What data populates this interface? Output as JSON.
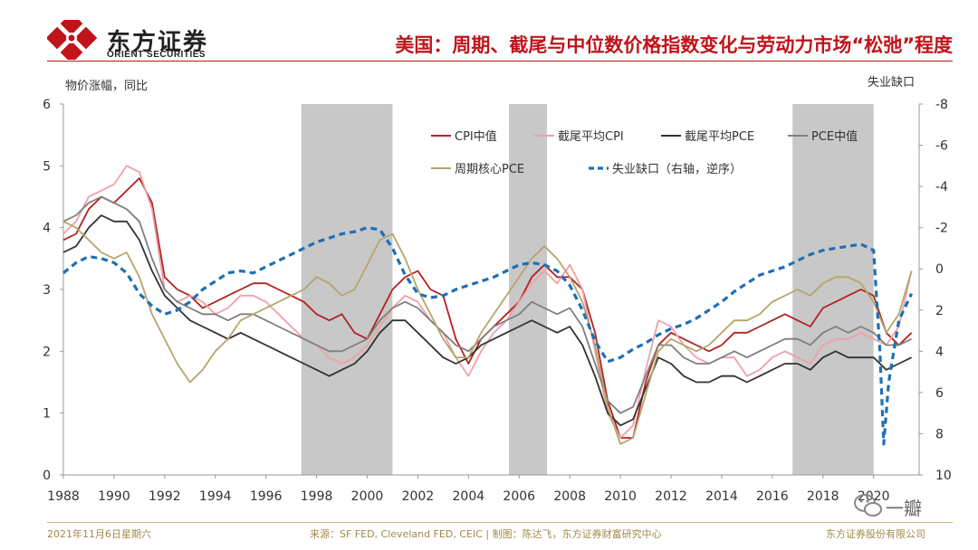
{
  "header": {
    "logo_cn": "东方证券",
    "logo_en": "ORIENT SECURITIES",
    "title": "美国：周期、截尾与中位数价格指数变化与劳动力市场“松弛”程度"
  },
  "footer": {
    "date": "2021年11月6日星期六",
    "source": "来源：SF FED, Cleveland FED, CEIC | 制图：陈达飞，东方证券财富研究中心",
    "company": "东方证券股份有限公司"
  },
  "watermark": {
    "text": "一瓣"
  },
  "colors": {
    "cpi_median": "#b22222",
    "trimmed_cpi": "#f0a0a8",
    "trimmed_pce": "#333333",
    "pce_median": "#7f7f7f",
    "cyclical_pce": "#b5a66a",
    "unemp_gap": "#1f6fb5",
    "shade": "#c8c8c8"
  },
  "chart_data": {
    "type": "line",
    "ylabel": "物价涨幅，同比",
    "y2label": "失业缺口",
    "xlim": [
      1988,
      2021.8
    ],
    "ylim": [
      0,
      6
    ],
    "y2lim": [
      10,
      -8
    ],
    "y2_reversed": true,
    "x_ticks": [
      "1988",
      "1990",
      "1992",
      "1994",
      "1996",
      "1998",
      "2000",
      "2002",
      "2004",
      "2006",
      "2008",
      "2010",
      "2012",
      "2014",
      "2016",
      "2018",
      "2020"
    ],
    "y_ticks": [
      "0",
      "1",
      "2",
      "3",
      "4",
      "5",
      "6"
    ],
    "y2_ticks": [
      "10",
      "8",
      "6",
      "4",
      "2",
      "0",
      "-2",
      "-4",
      "-6",
      "-8"
    ],
    "shaded_periods": [
      [
        1997.4,
        2001.0
      ],
      [
        2005.6,
        2007.1
      ],
      [
        2016.8,
        2020.0
      ]
    ],
    "series": [
      {
        "name": "CPI中值",
        "axis": "left",
        "style": "solid",
        "x": [
          1988,
          1988.5,
          1989,
          1989.5,
          1990,
          1990.5,
          1991,
          1991.5,
          1992,
          1992.5,
          1993,
          1993.5,
          1994,
          1994.5,
          1995,
          1995.5,
          1996,
          1996.5,
          1997,
          1997.5,
          1998,
          1998.5,
          1999,
          1999.5,
          2000,
          2000.5,
          2001,
          2001.5,
          2002,
          2002.5,
          2003,
          2003.5,
          2004,
          2004.5,
          2005,
          2005.5,
          2006,
          2006.5,
          2007,
          2007.5,
          2008,
          2008.5,
          2009,
          2009.5,
          2010,
          2010.5,
          2011,
          2011.5,
          2012,
          2012.5,
          2013,
          2013.5,
          2014,
          2014.5,
          2015,
          2015.5,
          2016,
          2016.5,
          2017,
          2017.5,
          2018,
          2018.5,
          2019,
          2019.5,
          2020,
          2020.5,
          2021,
          2021.5
        ],
        "y": [
          3.8,
          3.9,
          4.3,
          4.5,
          4.4,
          4.6,
          4.8,
          4.4,
          3.2,
          3.0,
          2.9,
          2.7,
          2.8,
          2.9,
          3.0,
          3.1,
          3.1,
          3.0,
          2.9,
          2.8,
          2.6,
          2.5,
          2.6,
          2.3,
          2.2,
          2.6,
          3.0,
          3.2,
          3.3,
          3.0,
          2.9,
          2.2,
          1.8,
          2.2,
          2.4,
          2.6,
          2.8,
          3.2,
          3.4,
          3.2,
          3.2,
          3.0,
          2.3,
          1.2,
          0.6,
          0.6,
          1.5,
          2.1,
          2.3,
          2.2,
          2.1,
          2.0,
          2.1,
          2.3,
          2.3,
          2.4,
          2.5,
          2.6,
          2.5,
          2.4,
          2.7,
          2.8,
          2.9,
          3.0,
          2.9,
          2.3,
          2.1,
          2.3
        ]
      },
      {
        "name": "截尾平均CPI",
        "axis": "left",
        "style": "solid",
        "x": [
          1988,
          1988.5,
          1989,
          1989.5,
          1990,
          1990.5,
          1991,
          1991.5,
          1992,
          1992.5,
          1993,
          1993.5,
          1994,
          1994.5,
          1995,
          1995.5,
          1996,
          1996.5,
          1997,
          1997.5,
          1998,
          1998.5,
          1999,
          1999.5,
          2000,
          2000.5,
          2001,
          2001.5,
          2002,
          2002.5,
          2003,
          2003.5,
          2004,
          2004.5,
          2005,
          2005.5,
          2006,
          2006.5,
          2007,
          2007.5,
          2008,
          2008.5,
          2009,
          2009.5,
          2010,
          2010.5,
          2011,
          2011.5,
          2012,
          2012.5,
          2013,
          2013.5,
          2014,
          2014.5,
          2015,
          2015.5,
          2016,
          2016.5,
          2017,
          2017.5,
          2018,
          2018.5,
          2019,
          2019.5,
          2020,
          2020.5,
          2021,
          2021.5
        ],
        "y": [
          3.9,
          4.1,
          4.5,
          4.6,
          4.7,
          5.0,
          4.9,
          4.3,
          3.0,
          2.8,
          2.9,
          2.8,
          2.6,
          2.7,
          2.9,
          2.9,
          2.8,
          2.6,
          2.4,
          2.2,
          2.1,
          1.9,
          1.8,
          1.9,
          2.1,
          2.4,
          2.7,
          2.9,
          2.8,
          2.5,
          2.3,
          1.9,
          1.6,
          2.0,
          2.3,
          2.5,
          2.8,
          3.1,
          3.3,
          3.1,
          3.4,
          3.0,
          2.0,
          1.0,
          0.6,
          0.8,
          1.7,
          2.5,
          2.4,
          2.1,
          1.9,
          1.8,
          1.9,
          1.9,
          1.6,
          1.7,
          1.9,
          2.0,
          1.9,
          1.8,
          2.1,
          2.2,
          2.2,
          2.3,
          2.2,
          2.1,
          2.4,
          3.3
        ]
      },
      {
        "name": "截尾平均PCE",
        "axis": "left",
        "style": "solid",
        "x": [
          1988,
          1988.5,
          1989,
          1989.5,
          1990,
          1990.5,
          1991,
          1991.5,
          1992,
          1992.5,
          1993,
          1993.5,
          1994,
          1994.5,
          1995,
          1995.5,
          1996,
          1996.5,
          1997,
          1997.5,
          1998,
          1998.5,
          1999,
          1999.5,
          2000,
          2000.5,
          2001,
          2001.5,
          2002,
          2002.5,
          2003,
          2003.5,
          2004,
          2004.5,
          2005,
          2005.5,
          2006,
          2006.5,
          2007,
          2007.5,
          2008,
          2008.5,
          2009,
          2009.5,
          2010,
          2010.5,
          2011,
          2011.5,
          2012,
          2012.5,
          2013,
          2013.5,
          2014,
          2014.5,
          2015,
          2015.5,
          2016,
          2016.5,
          2017,
          2017.5,
          2018,
          2018.5,
          2019,
          2019.5,
          2020,
          2020.5,
          2021,
          2021.5
        ],
        "y": [
          3.6,
          3.7,
          4.0,
          4.2,
          4.1,
          4.1,
          3.8,
          3.3,
          2.9,
          2.7,
          2.5,
          2.4,
          2.3,
          2.2,
          2.3,
          2.2,
          2.1,
          2.0,
          1.9,
          1.8,
          1.7,
          1.6,
          1.7,
          1.8,
          2.0,
          2.3,
          2.5,
          2.5,
          2.3,
          2.1,
          1.9,
          1.8,
          1.9,
          2.1,
          2.2,
          2.3,
          2.4,
          2.5,
          2.4,
          2.3,
          2.4,
          2.1,
          1.6,
          1.0,
          0.8,
          0.9,
          1.4,
          1.9,
          1.8,
          1.6,
          1.5,
          1.5,
          1.6,
          1.6,
          1.5,
          1.6,
          1.7,
          1.8,
          1.8,
          1.7,
          1.9,
          2.0,
          1.9,
          1.9,
          1.9,
          1.7,
          1.8,
          1.9
        ]
      },
      {
        "name": "PCE中值",
        "axis": "left",
        "style": "solid",
        "x": [
          1988,
          1988.5,
          1989,
          1989.5,
          1990,
          1990.5,
          1991,
          1991.5,
          1992,
          1992.5,
          1993,
          1993.5,
          1994,
          1994.5,
          1995,
          1995.5,
          1996,
          1996.5,
          1997,
          1997.5,
          1998,
          1998.5,
          1999,
          1999.5,
          2000,
          2000.5,
          2001,
          2001.5,
          2002,
          2002.5,
          2003,
          2003.5,
          2004,
          2004.5,
          2005,
          2005.5,
          2006,
          2006.5,
          2007,
          2007.5,
          2008,
          2008.5,
          2009,
          2009.5,
          2010,
          2010.5,
          2011,
          2011.5,
          2012,
          2012.5,
          2013,
          2013.5,
          2014,
          2014.5,
          2015,
          2015.5,
          2016,
          2016.5,
          2017,
          2017.5,
          2018,
          2018.5,
          2019,
          2019.5,
          2020,
          2020.5,
          2021,
          2021.5
        ],
        "y": [
          4.1,
          4.2,
          4.4,
          4.5,
          4.4,
          4.3,
          4.1,
          3.5,
          3.0,
          2.8,
          2.7,
          2.6,
          2.6,
          2.5,
          2.6,
          2.6,
          2.5,
          2.4,
          2.3,
          2.2,
          2.1,
          2.0,
          2.0,
          2.1,
          2.2,
          2.5,
          2.7,
          2.8,
          2.7,
          2.5,
          2.3,
          2.1,
          2.0,
          2.2,
          2.4,
          2.5,
          2.6,
          2.8,
          2.7,
          2.6,
          2.7,
          2.4,
          1.8,
          1.2,
          1.0,
          1.1,
          1.6,
          2.1,
          2.1,
          1.9,
          1.8,
          1.8,
          1.9,
          2.0,
          1.9,
          2.0,
          2.1,
          2.2,
          2.2,
          2.1,
          2.3,
          2.4,
          2.3,
          2.4,
          2.3,
          2.1,
          2.1,
          2.2
        ]
      },
      {
        "name": "周期核心PCE",
        "axis": "left",
        "style": "solid",
        "x": [
          1988,
          1988.5,
          1989,
          1989.5,
          1990,
          1990.5,
          1991,
          1991.5,
          1992,
          1992.5,
          1993,
          1993.5,
          1994,
          1994.5,
          1995,
          1995.5,
          1996,
          1996.5,
          1997,
          1997.5,
          1998,
          1998.5,
          1999,
          1999.5,
          2000,
          2000.5,
          2001,
          2001.5,
          2002,
          2002.5,
          2003,
          2003.5,
          2004,
          2004.5,
          2005,
          2005.5,
          2006,
          2006.5,
          2007,
          2007.5,
          2008,
          2008.5,
          2009,
          2009.5,
          2010,
          2010.5,
          2011,
          2011.5,
          2012,
          2012.5,
          2013,
          2013.5,
          2014,
          2014.5,
          2015,
          2015.5,
          2016,
          2016.5,
          2017,
          2017.5,
          2018,
          2018.5,
          2019,
          2019.5,
          2020,
          2020.5,
          2021,
          2021.5
        ],
        "y": [
          4.1,
          4.0,
          3.8,
          3.6,
          3.5,
          3.6,
          3.2,
          2.6,
          2.2,
          1.8,
          1.5,
          1.7,
          2.0,
          2.2,
          2.5,
          2.6,
          2.7,
          2.8,
          2.9,
          3.0,
          3.2,
          3.1,
          2.9,
          3.0,
          3.4,
          3.8,
          3.9,
          3.5,
          3.0,
          2.6,
          2.2,
          1.9,
          1.9,
          2.3,
          2.6,
          2.9,
          3.2,
          3.5,
          3.7,
          3.5,
          3.2,
          2.8,
          2.1,
          1.1,
          0.5,
          0.6,
          1.3,
          2.0,
          2.2,
          2.1,
          2.0,
          2.1,
          2.3,
          2.5,
          2.5,
          2.6,
          2.8,
          2.9,
          3.0,
          2.9,
          3.1,
          3.2,
          3.2,
          3.1,
          2.8,
          2.3,
          2.6,
          3.3
        ]
      },
      {
        "name": "失业缺口（右轴，逆序）",
        "axis": "right",
        "style": "dashed",
        "x": [
          1988,
          1988.5,
          1989,
          1989.5,
          1990,
          1990.5,
          1991,
          1991.5,
          1992,
          1992.5,
          1993,
          1993.5,
          1994,
          1994.5,
          1995,
          1995.5,
          1996,
          1996.5,
          1997,
          1997.5,
          1998,
          1998.5,
          1999,
          1999.5,
          2000,
          2000.5,
          2001,
          2001.5,
          2002,
          2002.5,
          2003,
          2003.5,
          2004,
          2004.5,
          2005,
          2005.5,
          2006,
          2006.5,
          2007,
          2007.5,
          2008,
          2008.5,
          2009,
          2009.5,
          2010,
          2010.5,
          2011,
          2011.5,
          2012,
          2012.5,
          2013,
          2013.5,
          2014,
          2014.5,
          2015,
          2015.5,
          2016,
          2016.5,
          2017,
          2017.5,
          2018,
          2018.5,
          2019,
          2019.5,
          2020,
          2020.25,
          2020.4,
          2020.6,
          2021,
          2021.5
        ],
        "y": [
          0.2,
          -0.3,
          -0.6,
          -0.5,
          -0.3,
          0.2,
          1.2,
          1.8,
          2.2,
          2.0,
          1.6,
          1.0,
          0.6,
          0.2,
          0.1,
          0.2,
          -0.1,
          -0.4,
          -0.7,
          -1.0,
          -1.3,
          -1.5,
          -1.7,
          -1.8,
          -2.0,
          -1.9,
          -1.0,
          0.3,
          1.2,
          1.4,
          1.3,
          1.0,
          0.8,
          0.6,
          0.4,
          0.1,
          -0.2,
          -0.3,
          -0.2,
          0.1,
          0.8,
          2.0,
          3.5,
          4.5,
          4.3,
          3.9,
          3.6,
          3.2,
          2.9,
          2.7,
          2.4,
          2.0,
          1.6,
          1.1,
          0.7,
          0.3,
          0.1,
          -0.1,
          -0.4,
          -0.7,
          -0.9,
          -1.0,
          -1.1,
          -1.2,
          -0.9,
          4.0,
          8.5,
          5.5,
          2.5,
          1.2
        ]
      }
    ]
  }
}
